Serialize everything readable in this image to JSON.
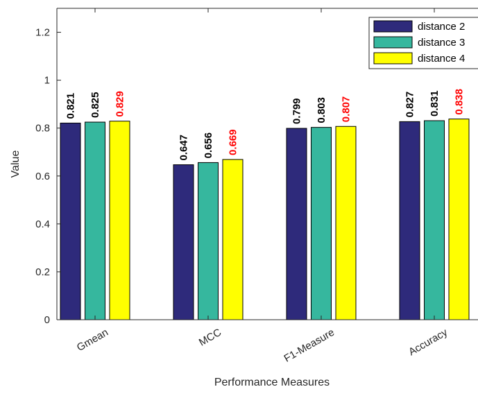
{
  "chart_data": {
    "type": "bar",
    "title": "",
    "xlabel": "Performance Measures",
    "ylabel": "Value",
    "ylim": [
      0,
      1.3
    ],
    "yticks": [
      "0",
      "0.2",
      "0.4",
      "0.6",
      "0.8",
      "1",
      "1.2"
    ],
    "ytick_values": [
      0,
      0.2,
      0.4,
      0.6,
      0.8,
      1.0,
      1.2
    ],
    "categories": [
      "Gmean",
      "MCC",
      "F1-Measure",
      "Accuracy"
    ],
    "series": [
      {
        "name": "distance 2",
        "color": "#2e2a7b",
        "label_color": "#000000",
        "values": [
          0.821,
          0.647,
          0.799,
          0.827
        ],
        "labels": [
          "0.821",
          "0.647",
          "0.799",
          "0.827"
        ]
      },
      {
        "name": "distance 3",
        "color": "#36b79e",
        "label_color": "#000000",
        "values": [
          0.825,
          0.656,
          0.803,
          0.831
        ],
        "labels": [
          "0.825",
          "0.656",
          "0.803",
          "0.831"
        ]
      },
      {
        "name": "distance 4",
        "color": "#ffff00",
        "label_color": "#ff0000",
        "values": [
          0.829,
          0.669,
          0.807,
          0.838
        ],
        "labels": [
          "0.829",
          "0.669",
          "0.807",
          "0.838"
        ]
      }
    ],
    "grid": false,
    "legend_position": "top-right"
  }
}
